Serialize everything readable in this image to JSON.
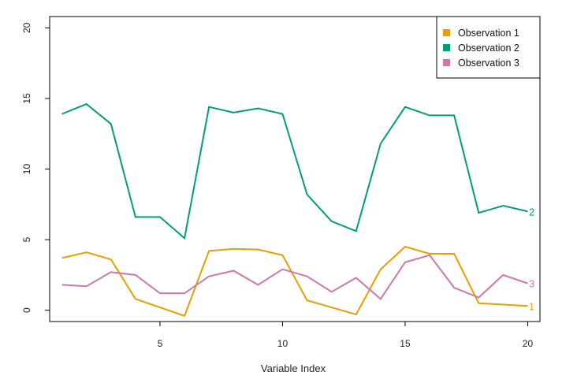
{
  "chart_data": {
    "type": "line",
    "title": "",
    "xlabel": "Variable Index",
    "ylabel": "",
    "xlim": [
      0.5,
      20.5
    ],
    "ylim": [
      -0.8,
      20.8
    ],
    "xticks": [
      5,
      10,
      15,
      20
    ],
    "yticks": [
      0,
      5,
      10,
      15,
      20
    ],
    "grid": false,
    "legend_position": "top-right",
    "x": [
      1,
      2,
      3,
      4,
      5,
      6,
      7,
      8,
      9,
      10,
      11,
      12,
      13,
      14,
      15,
      16,
      17,
      18,
      19,
      20
    ],
    "series": [
      {
        "name": "Observation 1",
        "end_label": "1",
        "color": "#E69F00",
        "values": [
          3.7,
          4.1,
          3.6,
          0.8,
          0.2,
          -0.4,
          4.2,
          4.35,
          4.3,
          3.9,
          0.7,
          0.2,
          -0.3,
          2.9,
          4.5,
          4.0,
          4.0,
          0.5,
          0.4,
          0.3
        ]
      },
      {
        "name": "Observation 2",
        "end_label": "2",
        "color": "#009E73",
        "values": [
          13.9,
          14.6,
          13.2,
          6.6,
          6.6,
          5.1,
          14.4,
          14.0,
          14.3,
          13.9,
          8.2,
          6.3,
          5.6,
          11.8,
          14.4,
          13.8,
          13.8,
          6.9,
          7.4,
          7.0
        ]
      },
      {
        "name": "Observation 3",
        "end_label": "3",
        "color": "#CC79A7",
        "values": [
          1.8,
          1.7,
          2.7,
          2.5,
          1.2,
          1.2,
          2.4,
          2.8,
          1.8,
          2.9,
          2.4,
          1.3,
          2.3,
          0.8,
          3.4,
          3.9,
          1.6,
          0.9,
          2.5,
          1.9
        ]
      }
    ]
  }
}
